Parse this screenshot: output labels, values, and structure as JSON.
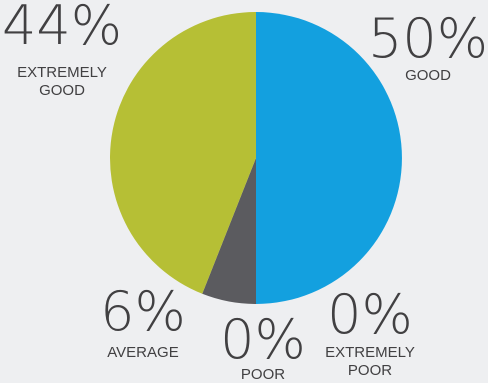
{
  "chart_data": {
    "type": "pie",
    "title": "",
    "start_angle_deg": 0,
    "direction": "clockwise",
    "slices": [
      {
        "key": "good",
        "value": 50,
        "pct_label": "50%",
        "label_lines": [
          "GOOD"
        ],
        "color": "#13a0df"
      },
      {
        "key": "extremely_poor",
        "value": 0,
        "pct_label": "0%",
        "label_lines": [
          "EXTREMELY",
          "POOR"
        ],
        "color": "#13a0df"
      },
      {
        "key": "poor",
        "value": 0,
        "pct_label": "0%",
        "label_lines": [
          "POOR"
        ],
        "color": "#5b5b5f"
      },
      {
        "key": "average",
        "value": 6,
        "pct_label": "6%",
        "label_lines": [
          "AVERAGE"
        ],
        "color": "#5b5b5f"
      },
      {
        "key": "extremely_good",
        "value": 44,
        "pct_label": "44%",
        "label_lines": [
          "EXTREMELY",
          "GOOD"
        ],
        "color": "#b6bf35"
      }
    ]
  }
}
